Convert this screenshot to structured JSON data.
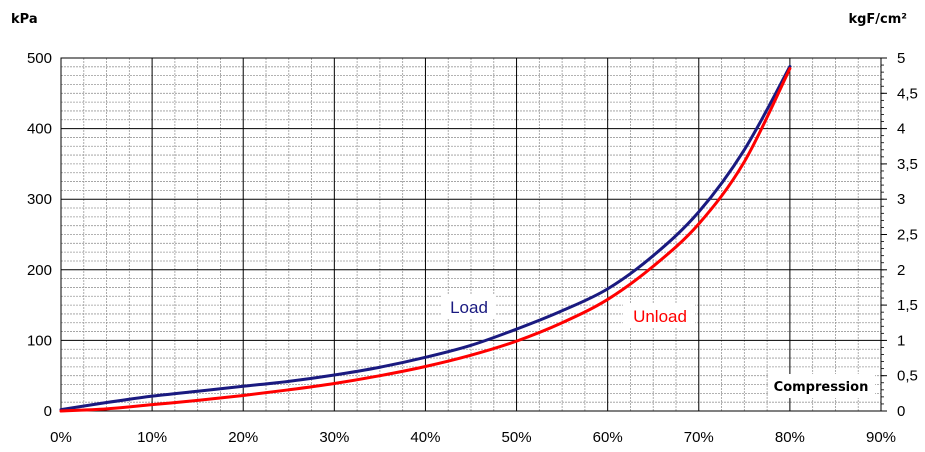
{
  "chart_data": {
    "type": "line",
    "left_axis_unit": "kPa",
    "right_axis_unit": "kgF/cm²",
    "xlabel": "Compression",
    "xlim": [
      0,
      90
    ],
    "ylim_left": [
      0,
      500
    ],
    "ylim_right": [
      0,
      5
    ],
    "x_ticks": [
      "0%",
      "10%",
      "20%",
      "30%",
      "40%",
      "50%",
      "60%",
      "70%",
      "80%",
      "90%"
    ],
    "x_tick_values": [
      0,
      10,
      20,
      30,
      40,
      50,
      60,
      70,
      80,
      90
    ],
    "y_left_ticks": [
      "0",
      "100",
      "200",
      "300",
      "400",
      "500"
    ],
    "y_left_tick_values": [
      0,
      100,
      200,
      300,
      400,
      500
    ],
    "y_right_ticks": [
      "0",
      "0,5",
      "1",
      "1,5",
      "2",
      "2,5",
      "3",
      "3,5",
      "4",
      "4,5",
      "5"
    ],
    "y_right_tick_values": [
      0,
      0.5,
      1,
      1.5,
      2,
      2.5,
      3,
      3.5,
      4,
      4.5,
      5
    ],
    "grid": true,
    "series": [
      {
        "name": "Load",
        "color": "#1a1a80",
        "x": [
          0,
          5,
          10,
          15,
          20,
          25,
          30,
          35,
          40,
          45,
          50,
          55,
          60,
          65,
          70,
          75,
          80
        ],
        "values": [
          2,
          12,
          21,
          28,
          35,
          42,
          51,
          62,
          76,
          93,
          116,
          142,
          173,
          220,
          282,
          370,
          488
        ]
      },
      {
        "name": "Unload",
        "color": "#ff0000",
        "x": [
          0,
          5,
          10,
          15,
          20,
          25,
          30,
          35,
          40,
          45,
          50,
          55,
          60,
          65,
          70,
          75,
          80
        ],
        "values": [
          0,
          3,
          9,
          15,
          22,
          30,
          39,
          50,
          63,
          79,
          99,
          125,
          158,
          205,
          265,
          353,
          485
        ]
      }
    ]
  }
}
